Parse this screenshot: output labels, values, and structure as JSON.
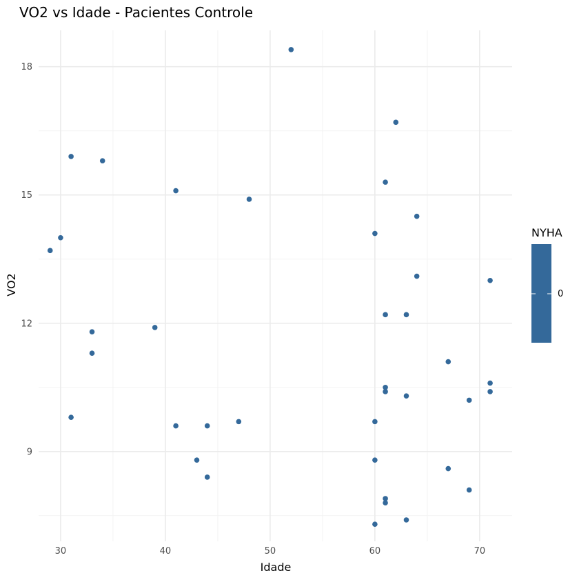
{
  "chart_data": {
    "type": "scatter",
    "title": "VO2 vs Idade - Pacientes Controle",
    "xlabel": "Idade",
    "ylabel": "VO2",
    "xlim": [
      27.9,
      73.1
    ],
    "ylim": [
      6.9,
      18.85
    ],
    "x_ticks": [
      30,
      40,
      50,
      60,
      70
    ],
    "x_tick_labels": [
      "30",
      "40",
      "50",
      "60",
      "70"
    ],
    "x_minor_ticks": [
      35,
      45,
      55,
      65
    ],
    "y_ticks": [
      9,
      12,
      15,
      18
    ],
    "y_tick_labels": [
      "9",
      "12",
      "15",
      "18"
    ],
    "y_minor_ticks": [
      7.5,
      10.5,
      13.5,
      16.5
    ],
    "grid": true,
    "point_color": "#34699A",
    "legend": {
      "title": "NYHA",
      "position": "right",
      "label": "0",
      "color": "#34699A"
    },
    "series": [
      {
        "points": [
          {
            "x": 29,
            "y": 13.7
          },
          {
            "x": 30,
            "y": 14.0
          },
          {
            "x": 31,
            "y": 15.9
          },
          {
            "x": 31,
            "y": 9.8
          },
          {
            "x": 33,
            "y": 11.8
          },
          {
            "x": 33,
            "y": 11.3
          },
          {
            "x": 34,
            "y": 15.8
          },
          {
            "x": 39,
            "y": 11.9
          },
          {
            "x": 41,
            "y": 15.1
          },
          {
            "x": 41,
            "y": 9.6
          },
          {
            "x": 43,
            "y": 8.8
          },
          {
            "x": 44,
            "y": 9.6
          },
          {
            "x": 44,
            "y": 8.4
          },
          {
            "x": 47,
            "y": 9.7
          },
          {
            "x": 48,
            "y": 14.9
          },
          {
            "x": 52,
            "y": 18.4
          },
          {
            "x": 60,
            "y": 14.1
          },
          {
            "x": 60,
            "y": 9.7
          },
          {
            "x": 60,
            "y": 8.8
          },
          {
            "x": 60,
            "y": 7.3
          },
          {
            "x": 61,
            "y": 15.3
          },
          {
            "x": 61,
            "y": 12.2
          },
          {
            "x": 61,
            "y": 10.5
          },
          {
            "x": 61,
            "y": 10.4
          },
          {
            "x": 61,
            "y": 7.9
          },
          {
            "x": 61,
            "y": 7.8
          },
          {
            "x": 62,
            "y": 16.7
          },
          {
            "x": 63,
            "y": 12.2
          },
          {
            "x": 63,
            "y": 10.3
          },
          {
            "x": 63,
            "y": 7.4
          },
          {
            "x": 64,
            "y": 14.5
          },
          {
            "x": 64,
            "y": 13.1
          },
          {
            "x": 67,
            "y": 11.1
          },
          {
            "x": 67,
            "y": 8.6
          },
          {
            "x": 69,
            "y": 10.2
          },
          {
            "x": 69,
            "y": 8.1
          },
          {
            "x": 71,
            "y": 13.0
          },
          {
            "x": 71,
            "y": 10.6
          },
          {
            "x": 71,
            "y": 10.4
          }
        ]
      }
    ]
  }
}
